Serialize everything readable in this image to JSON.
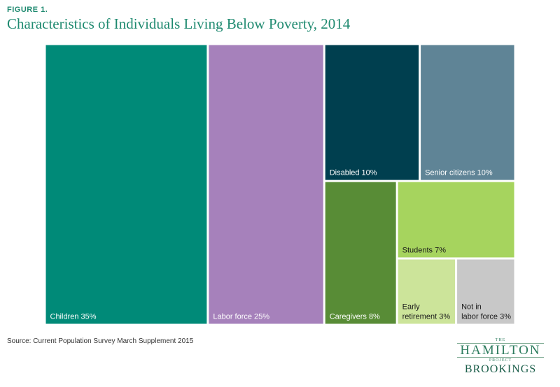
{
  "figure": {
    "label": "FIGURE 1.",
    "title": "Characteristics of Individuals Living Below Poverty, 2014",
    "source": "Source: Current Population Survey March Supplement 2015"
  },
  "logo": {
    "the": "THE",
    "hamilton": "HAMILTON",
    "project": "PROJECT",
    "brookings": "BROOKINGS"
  },
  "colors": {
    "title": "#1f8a70"
  },
  "chart_data": {
    "type": "treemap",
    "title": "Characteristics of Individuals Living Below Poverty, 2014",
    "unit": "%",
    "items": [
      {
        "name": "Children",
        "value": 35,
        "label": "Children 35%",
        "color": "#008a78",
        "text_color": "#ffffff"
      },
      {
        "name": "Labor force",
        "value": 25,
        "label": "Labor force 25%",
        "color": "#a681bb",
        "text_color": "#ffffff"
      },
      {
        "name": "Disabled",
        "value": 10,
        "label": "Disabled 10%",
        "color": "#003f4f",
        "text_color": "#ffffff"
      },
      {
        "name": "Senior citizens",
        "value": 10,
        "label": "Senior citizens 10%",
        "color": "#5f8496",
        "text_color": "#ffffff"
      },
      {
        "name": "Caregivers",
        "value": 8,
        "label": "Caregivers 8%",
        "color": "#588c36",
        "text_color": "#ffffff"
      },
      {
        "name": "Students",
        "value": 7,
        "label": "Students 7%",
        "color": "#a6d45e",
        "text_color": "#1a1a1a"
      },
      {
        "name": "Early retirement",
        "value": 3,
        "label": "Early retirement 3%",
        "color": "#cce49a",
        "text_color": "#1a1a1a"
      },
      {
        "name": "Not in labor force",
        "value": 3,
        "label": "Not in labor force 3%",
        "color": "#c8c8c8",
        "text_color": "#1a1a1a"
      }
    ]
  }
}
